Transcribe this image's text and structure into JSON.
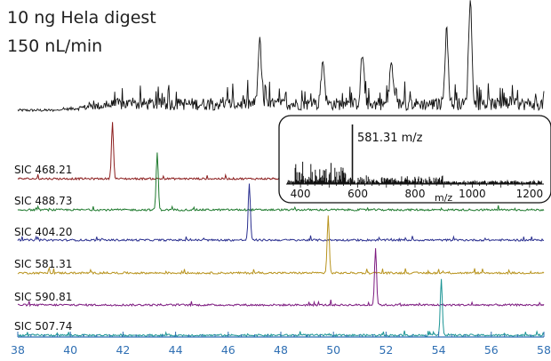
{
  "title_lines": [
    "10 ng Hela digest",
    "150 nL/min"
  ],
  "colors": {
    "tic": "#111111",
    "axis": "#2f6fb3",
    "inset_border": "#111111"
  },
  "chart_data": [
    {
      "type": "line",
      "role": "total-ion-chromatogram",
      "x_range": [
        38,
        58
      ],
      "peaks_approx": [
        {
          "x": 47.2,
          "rel": 0.6
        },
        {
          "x": 49.6,
          "rel": 0.42
        },
        {
          "x": 51.1,
          "rel": 0.48
        },
        {
          "x": 52.2,
          "rel": 0.4
        },
        {
          "x": 54.3,
          "rel": 0.7
        },
        {
          "x": 55.2,
          "rel": 1.0
        }
      ]
    },
    {
      "type": "line",
      "role": "selected-ion-chromatograms",
      "x_range": [
        38,
        58
      ],
      "xticks": [
        38,
        40,
        42,
        44,
        46,
        48,
        50,
        52,
        54,
        56,
        58
      ],
      "series": [
        {
          "name": "SIC 468.21",
          "peak_x": 41.6,
          "color": "#8b1d1d"
        },
        {
          "name": "SIC 488.73",
          "peak_x": 43.3,
          "color": "#1f7a2e"
        },
        {
          "name": "SIC 404.20",
          "peak_x": 46.8,
          "color": "#2a2f8f"
        },
        {
          "name": "SIC 581.31",
          "peak_x": 49.8,
          "color": "#b8931d"
        },
        {
          "name": "SIC 590.81",
          "peak_x": 51.6,
          "color": "#7d1a80"
        },
        {
          "name": "SIC 507.74",
          "peak_x": 54.1,
          "color": "#1a9494"
        }
      ]
    },
    {
      "type": "bar",
      "role": "ms-spectrum-inset",
      "xlabel": "m/z",
      "xlim": [
        350,
        1250
      ],
      "xticks": [
        400,
        600,
        800,
        1000,
        1200
      ],
      "annotation": "581.31 m/z",
      "base_peak_mz": 581.31
    }
  ]
}
